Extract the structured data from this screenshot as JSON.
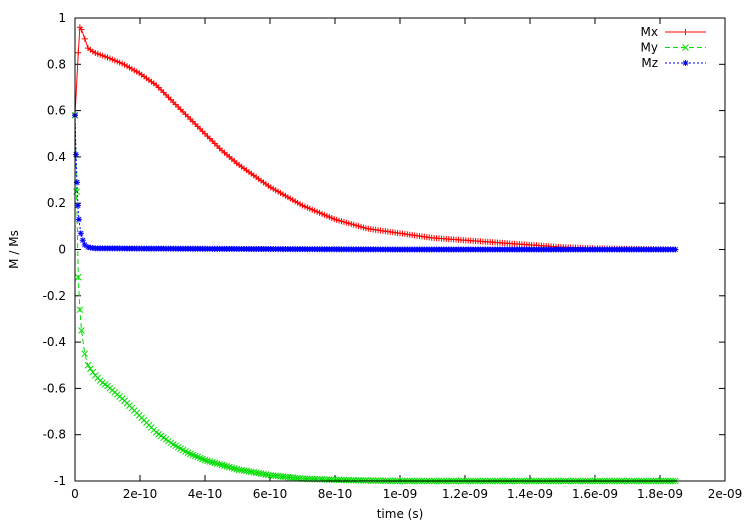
{
  "chart_data": {
    "type": "line",
    "title": "",
    "xlabel": "time (s)",
    "ylabel": "M / Ms",
    "xlim": [
      0,
      2e-09
    ],
    "ylim": [
      -1,
      1
    ],
    "xticks": [
      0,
      2e-10,
      4e-10,
      6e-10,
      8e-10,
      1e-09,
      1.2e-09,
      1.4e-09,
      1.6e-09,
      1.8e-09,
      2e-09
    ],
    "xtick_labels": [
      "0",
      "2e-10",
      "4e-10",
      "6e-10",
      "8e-10",
      "1e-09",
      "1.2e-09",
      "1.4e-09",
      "1.6e-09",
      "1.8e-09",
      "2e-09"
    ],
    "yticks": [
      -1,
      -0.8,
      -0.6,
      -0.4,
      -0.2,
      0,
      0.2,
      0.4,
      0.6,
      0.8,
      1
    ],
    "ytick_labels": [
      "-1",
      "-0.8",
      "-0.6",
      "-0.4",
      "-0.2",
      "0",
      "0.2",
      "0.4",
      "0.6",
      "0.8",
      "1"
    ],
    "grid": false,
    "legend_position": "top-right",
    "series": [
      {
        "name": "Mx",
        "color": "#ff0000",
        "marker": "plus",
        "dash": "solid",
        "points": [
          [
            0,
            0.58
          ],
          [
            1e-11,
            0.85
          ],
          [
            1.5e-11,
            0.96
          ],
          [
            2e-11,
            0.95
          ],
          [
            3e-11,
            0.91
          ],
          [
            4e-11,
            0.87
          ],
          [
            6e-11,
            0.85
          ],
          [
            8e-11,
            0.84
          ],
          [
            1e-10,
            0.83
          ],
          [
            1.5e-10,
            0.8
          ],
          [
            2e-10,
            0.76
          ],
          [
            2.5e-10,
            0.71
          ],
          [
            3e-10,
            0.64
          ],
          [
            3.5e-10,
            0.57
          ],
          [
            4e-10,
            0.5
          ],
          [
            4.5e-10,
            0.43
          ],
          [
            5e-10,
            0.37
          ],
          [
            6e-10,
            0.27
          ],
          [
            7e-10,
            0.19
          ],
          [
            8e-10,
            0.13
          ],
          [
            9e-10,
            0.09
          ],
          [
            1e-09,
            0.07
          ],
          [
            1.1e-09,
            0.05
          ],
          [
            1.2e-09,
            0.04
          ],
          [
            1.3e-09,
            0.03
          ],
          [
            1.4e-09,
            0.02
          ],
          [
            1.5e-09,
            0.01
          ],
          [
            1.6e-09,
            0.005
          ],
          [
            1.7e-09,
            0.003
          ],
          [
            1.8e-09,
            0.001
          ],
          [
            1.85e-09,
            0.0
          ]
        ]
      },
      {
        "name": "My",
        "color": "#00dd00",
        "marker": "cross",
        "dash": "dashed",
        "points": [
          [
            0,
            0.58
          ],
          [
            5e-12,
            0.25
          ],
          [
            1e-11,
            -0.12
          ],
          [
            1.5e-11,
            -0.26
          ],
          [
            2e-11,
            -0.35
          ],
          [
            3e-11,
            -0.45
          ],
          [
            4e-11,
            -0.5
          ],
          [
            6e-11,
            -0.54
          ],
          [
            8e-11,
            -0.57
          ],
          [
            1e-10,
            -0.59
          ],
          [
            1.5e-10,
            -0.65
          ],
          [
            2e-10,
            -0.72
          ],
          [
            2.5e-10,
            -0.79
          ],
          [
            3e-10,
            -0.84
          ],
          [
            3.5e-10,
            -0.88
          ],
          [
            4e-10,
            -0.91
          ],
          [
            4.5e-10,
            -0.93
          ],
          [
            5e-10,
            -0.95
          ],
          [
            6e-10,
            -0.975
          ],
          [
            7e-10,
            -0.99
          ],
          [
            8e-10,
            -0.995
          ],
          [
            9e-10,
            -0.998
          ],
          [
            1e-09,
            -1.0
          ],
          [
            1.2e-09,
            -1.0
          ],
          [
            1.4e-09,
            -1.0
          ],
          [
            1.6e-09,
            -1.0
          ],
          [
            1.85e-09,
            -1.0
          ]
        ]
      },
      {
        "name": "Mz",
        "color": "#0000ff",
        "marker": "star",
        "dash": "dotted",
        "points": [
          [
            0,
            0.58
          ],
          [
            3e-12,
            0.41
          ],
          [
            6e-12,
            0.29
          ],
          [
            9e-12,
            0.19
          ],
          [
            1.2e-11,
            0.13
          ],
          [
            1.8e-11,
            0.07
          ],
          [
            2.4e-11,
            0.04
          ],
          [
            3e-11,
            0.02
          ],
          [
            4e-11,
            0.01
          ],
          [
            6e-11,
            0.005
          ],
          [
            1e-10,
            0.005
          ],
          [
            2e-10,
            0.004
          ],
          [
            4e-10,
            0.003
          ],
          [
            6e-10,
            0.002
          ],
          [
            8e-10,
            0.001
          ],
          [
            1e-09,
            0.0
          ],
          [
            1.2e-09,
            0.0
          ],
          [
            1.4e-09,
            0.0
          ],
          [
            1.6e-09,
            0.0
          ],
          [
            1.85e-09,
            0.0
          ]
        ]
      }
    ]
  }
}
